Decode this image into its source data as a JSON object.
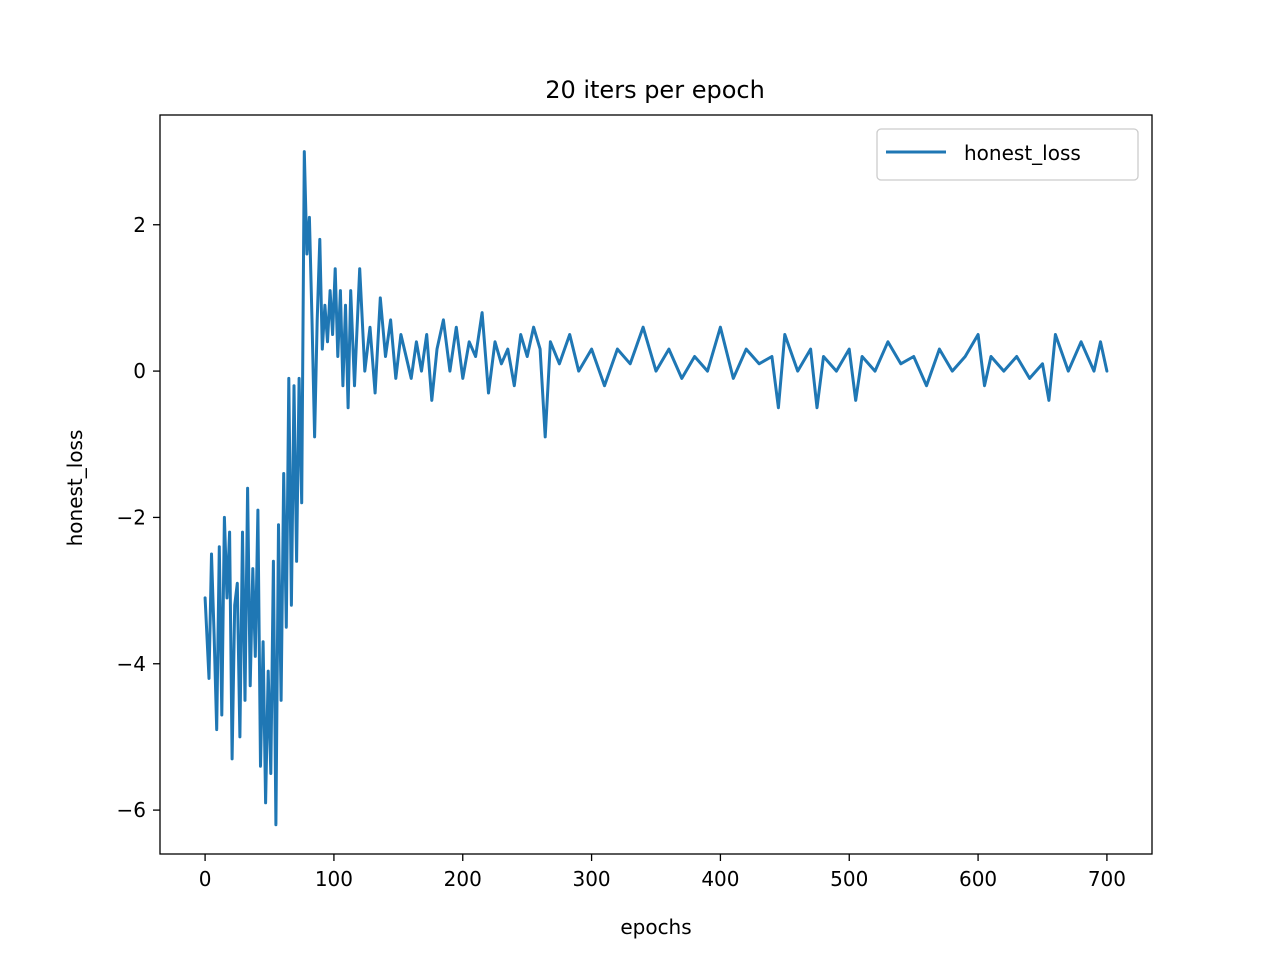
{
  "chart_data": {
    "type": "line",
    "title": "20 iters per epoch",
    "xlabel": "epochs",
    "ylabel": "honest_loss",
    "xlim": [
      -35,
      735
    ],
    "ylim": [
      -6.6,
      3.5
    ],
    "xticks": [
      0,
      100,
      200,
      300,
      400,
      500,
      600,
      700
    ],
    "yticks": [
      -6,
      -4,
      -2,
      0,
      2
    ],
    "legend": {
      "position": "top-right",
      "entries": [
        "honest_loss"
      ]
    },
    "grid": false,
    "series": [
      {
        "name": "honest_loss",
        "color": "#1f77b4",
        "x": [
          0,
          3,
          5,
          7,
          9,
          11,
          13,
          15,
          17,
          19,
          21,
          23,
          25,
          27,
          29,
          31,
          33,
          35,
          37,
          39,
          41,
          43,
          45,
          47,
          49,
          51,
          53,
          55,
          57,
          59,
          61,
          63,
          65,
          67,
          69,
          71,
          73,
          75,
          77,
          79,
          81,
          83,
          85,
          87,
          89,
          91,
          93,
          95,
          97,
          99,
          101,
          103,
          105,
          107,
          109,
          111,
          113,
          116,
          120,
          124,
          128,
          132,
          136,
          140,
          144,
          148,
          152,
          156,
          160,
          164,
          168,
          172,
          176,
          180,
          185,
          190,
          195,
          200,
          205,
          210,
          215,
          220,
          225,
          230,
          235,
          240,
          245,
          250,
          255,
          260,
          264,
          268,
          275,
          283,
          290,
          300,
          310,
          320,
          330,
          340,
          350,
          360,
          370,
          380,
          390,
          400,
          410,
          420,
          430,
          440,
          445,
          450,
          460,
          470,
          475,
          480,
          490,
          500,
          505,
          510,
          520,
          530,
          540,
          550,
          560,
          570,
          580,
          590,
          600,
          605,
          610,
          620,
          630,
          640,
          650,
          655,
          660,
          670,
          680,
          690,
          695,
          700
        ],
        "values": [
          -3.1,
          -4.2,
          -2.5,
          -3.6,
          -4.9,
          -2.4,
          -4.7,
          -2.0,
          -3.1,
          -2.2,
          -5.3,
          -3.2,
          -2.9,
          -5.0,
          -2.2,
          -4.5,
          -1.6,
          -4.3,
          -2.7,
          -3.9,
          -1.9,
          -5.4,
          -3.7,
          -5.9,
          -4.1,
          -5.5,
          -2.6,
          -6.2,
          -2.1,
          -4.5,
          -1.4,
          -3.5,
          -0.1,
          -3.2,
          -0.2,
          -2.6,
          -0.1,
          -1.8,
          3.0,
          1.6,
          2.1,
          0.7,
          -0.9,
          0.7,
          1.8,
          0.3,
          0.9,
          0.4,
          1.1,
          0.5,
          1.4,
          0.2,
          1.1,
          -0.2,
          0.9,
          -0.5,
          1.1,
          -0.2,
          1.4,
          0.0,
          0.6,
          -0.3,
          1.0,
          0.2,
          0.7,
          -0.1,
          0.5,
          0.2,
          -0.1,
          0.4,
          0.0,
          0.5,
          -0.4,
          0.3,
          0.7,
          0.0,
          0.6,
          -0.1,
          0.4,
          0.2,
          0.8,
          -0.3,
          0.4,
          0.1,
          0.3,
          -0.2,
          0.5,
          0.2,
          0.6,
          0.3,
          -0.9,
          0.4,
          0.1,
          0.5,
          0.0,
          0.3,
          -0.2,
          0.3,
          0.1,
          0.6,
          0.0,
          0.3,
          -0.1,
          0.2,
          0.0,
          0.6,
          -0.1,
          0.3,
          0.1,
          0.2,
          -0.5,
          0.5,
          0.0,
          0.3,
          -0.5,
          0.2,
          0.0,
          0.3,
          -0.4,
          0.2,
          0.0,
          0.4,
          0.1,
          0.2,
          -0.2,
          0.3,
          0.0,
          0.2,
          0.5,
          -0.2,
          0.2,
          0.0,
          0.2,
          -0.1,
          0.1,
          -0.4,
          0.5,
          0.0,
          0.4,
          0.0,
          0.4,
          0.0
        ]
      }
    ]
  }
}
